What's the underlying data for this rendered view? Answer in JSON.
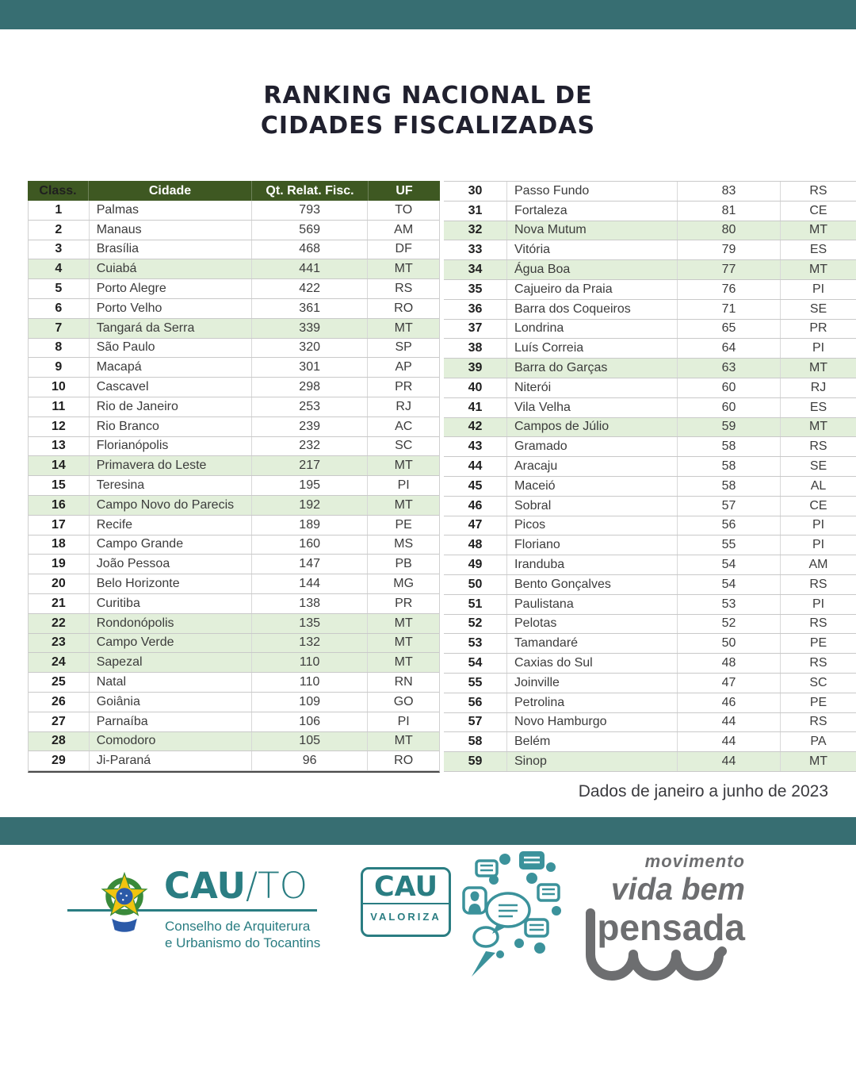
{
  "page": {
    "title_line1": "RANKING NACIONAL DE",
    "title_line2": "CIDADES FISCALIZADAS",
    "footnote": "Dados de janeiro a junho de 2023"
  },
  "colors": {
    "teal_bar": "#376e72",
    "table_header_green": "#3e5822",
    "highlight_green": "#e2efda",
    "title_text": "#20202e",
    "cau_teal": "#2a7d82",
    "movimento_gray": "#6d6e70"
  },
  "table": {
    "headers": {
      "class_label": "Class.",
      "city_label": "Cidade",
      "qty_label": "Qt. Relat. Fisc.",
      "uf_label": "UF"
    },
    "highlight_uf": "MT",
    "left_rows": [
      {
        "rank": 1,
        "city": "Palmas",
        "qty": 793,
        "uf": "TO"
      },
      {
        "rank": 2,
        "city": "Manaus",
        "qty": 569,
        "uf": "AM"
      },
      {
        "rank": 3,
        "city": "Brasília",
        "qty": 468,
        "uf": "DF"
      },
      {
        "rank": 4,
        "city": "Cuiabá",
        "qty": 441,
        "uf": "MT"
      },
      {
        "rank": 5,
        "city": "Porto Alegre",
        "qty": 422,
        "uf": "RS"
      },
      {
        "rank": 6,
        "city": "Porto Velho",
        "qty": 361,
        "uf": "RO"
      },
      {
        "rank": 7,
        "city": "Tangará da Serra",
        "qty": 339,
        "uf": "MT"
      },
      {
        "rank": 8,
        "city": "São Paulo",
        "qty": 320,
        "uf": "SP"
      },
      {
        "rank": 9,
        "city": "Macapá",
        "qty": 301,
        "uf": "AP"
      },
      {
        "rank": 10,
        "city": "Cascavel",
        "qty": 298,
        "uf": "PR"
      },
      {
        "rank": 11,
        "city": "Rio de Janeiro",
        "qty": 253,
        "uf": "RJ"
      },
      {
        "rank": 12,
        "city": "Rio Branco",
        "qty": 239,
        "uf": "AC"
      },
      {
        "rank": 13,
        "city": "Florianópolis",
        "qty": 232,
        "uf": "SC"
      },
      {
        "rank": 14,
        "city": "Primavera do Leste",
        "qty": 217,
        "uf": "MT"
      },
      {
        "rank": 15,
        "city": "Teresina",
        "qty": 195,
        "uf": "PI"
      },
      {
        "rank": 16,
        "city": "Campo Novo do Parecis",
        "qty": 192,
        "uf": "MT"
      },
      {
        "rank": 17,
        "city": "Recife",
        "qty": 189,
        "uf": "PE"
      },
      {
        "rank": 18,
        "city": "Campo Grande",
        "qty": 160,
        "uf": "MS"
      },
      {
        "rank": 19,
        "city": "João Pessoa",
        "qty": 147,
        "uf": "PB"
      },
      {
        "rank": 20,
        "city": "Belo Horizonte",
        "qty": 144,
        "uf": "MG"
      },
      {
        "rank": 21,
        "city": "Curitiba",
        "qty": 138,
        "uf": "PR"
      },
      {
        "rank": 22,
        "city": "Rondonópolis",
        "qty": 135,
        "uf": "MT"
      },
      {
        "rank": 23,
        "city": "Campo Verde",
        "qty": 132,
        "uf": "MT"
      },
      {
        "rank": 24,
        "city": "Sapezal",
        "qty": 110,
        "uf": "MT"
      },
      {
        "rank": 25,
        "city": "Natal",
        "qty": 110,
        "uf": "RN"
      },
      {
        "rank": 26,
        "city": "Goiânia",
        "qty": 109,
        "uf": "GO"
      },
      {
        "rank": 27,
        "city": "Parnaíba",
        "qty": 106,
        "uf": "PI"
      },
      {
        "rank": 28,
        "city": "Comodoro",
        "qty": 105,
        "uf": "MT"
      },
      {
        "rank": 29,
        "city": "Ji-Paraná",
        "qty": 96,
        "uf": "RO"
      }
    ],
    "right_rows": [
      {
        "rank": 30,
        "city": "Passo Fundo",
        "qty": 83,
        "uf": "RS"
      },
      {
        "rank": 31,
        "city": "Fortaleza",
        "qty": 81,
        "uf": "CE"
      },
      {
        "rank": 32,
        "city": "Nova Mutum",
        "qty": 80,
        "uf": "MT"
      },
      {
        "rank": 33,
        "city": "Vitória",
        "qty": 79,
        "uf": "ES"
      },
      {
        "rank": 34,
        "city": "Água Boa",
        "qty": 77,
        "uf": "MT"
      },
      {
        "rank": 35,
        "city": "Cajueiro da Praia",
        "qty": 76,
        "uf": "PI"
      },
      {
        "rank": 36,
        "city": "Barra dos Coqueiros",
        "qty": 71,
        "uf": "SE"
      },
      {
        "rank": 37,
        "city": "Londrina",
        "qty": 65,
        "uf": "PR"
      },
      {
        "rank": 38,
        "city": "Luís Correia",
        "qty": 64,
        "uf": "PI"
      },
      {
        "rank": 39,
        "city": "Barra do Garças",
        "qty": 63,
        "uf": "MT"
      },
      {
        "rank": 40,
        "city": "Niterói",
        "qty": 60,
        "uf": "RJ"
      },
      {
        "rank": 41,
        "city": "Vila Velha",
        "qty": 60,
        "uf": "ES"
      },
      {
        "rank": 42,
        "city": "Campos de Júlio",
        "qty": 59,
        "uf": "MT"
      },
      {
        "rank": 43,
        "city": "Gramado",
        "qty": 58,
        "uf": "RS"
      },
      {
        "rank": 44,
        "city": "Aracaju",
        "qty": 58,
        "uf": "SE"
      },
      {
        "rank": 45,
        "city": "Maceió",
        "qty": 58,
        "uf": "AL"
      },
      {
        "rank": 46,
        "city": "Sobral",
        "qty": 57,
        "uf": "CE"
      },
      {
        "rank": 47,
        "city": "Picos",
        "qty": 56,
        "uf": "PI"
      },
      {
        "rank": 48,
        "city": "Floriano",
        "qty": 55,
        "uf": "PI"
      },
      {
        "rank": 49,
        "city": "Iranduba",
        "qty": 54,
        "uf": "AM"
      },
      {
        "rank": 50,
        "city": "Bento Gonçalves",
        "qty": 54,
        "uf": "RS"
      },
      {
        "rank": 51,
        "city": "Paulistana",
        "qty": 53,
        "uf": "PI"
      },
      {
        "rank": 52,
        "city": "Pelotas",
        "qty": 52,
        "uf": "RS"
      },
      {
        "rank": 53,
        "city": "Tamandaré",
        "qty": 50,
        "uf": "PE"
      },
      {
        "rank": 54,
        "city": "Caxias do Sul",
        "qty": 48,
        "uf": "RS"
      },
      {
        "rank": 55,
        "city": "Joinville",
        "qty": 47,
        "uf": "SC"
      },
      {
        "rank": 56,
        "city": "Petrolina",
        "qty": 46,
        "uf": "PE"
      },
      {
        "rank": 57,
        "city": "Novo Hamburgo",
        "qty": 44,
        "uf": "RS"
      },
      {
        "rank": 58,
        "city": "Belém",
        "qty": 44,
        "uf": "PA"
      },
      {
        "rank": 59,
        "city": "Sinop",
        "qty": 44,
        "uf": "MT"
      }
    ]
  },
  "footer": {
    "cauto": {
      "name_main": "CAU",
      "name_suffix": "/TO",
      "sub_line1": "Conselho de Arquiterura",
      "sub_line2": "e Urbanismo do Tocantins"
    },
    "valoriza": {
      "name": "CAU",
      "sub": "VALORIZA"
    },
    "movimento": {
      "line1": "movimento",
      "line2": "vida bem",
      "line3": "pensada"
    }
  }
}
